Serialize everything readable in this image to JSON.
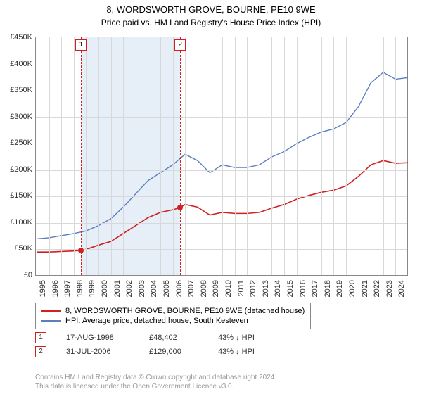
{
  "title_line1": "8, WORDSWORTH GROVE, BOURNE, PE10 9WE",
  "title_line2": "Price paid vs. HM Land Registry's House Price Index (HPI)",
  "chart": {
    "type": "line",
    "background_color": "#ffffff",
    "grid_color": "#d8d8d8",
    "border_color": "#888888",
    "ylim": [
      0,
      450000
    ],
    "ytick_step": 50000,
    "yticks": [
      "£0",
      "£50K",
      "£100K",
      "£150K",
      "£200K",
      "£250K",
      "£300K",
      "£350K",
      "£400K",
      "£450K"
    ],
    "xlim": [
      1995,
      2025
    ],
    "xticks": [
      1995,
      1996,
      1997,
      1998,
      1999,
      2000,
      2001,
      2002,
      2003,
      2004,
      2005,
      2006,
      2007,
      2008,
      2009,
      2010,
      2011,
      2012,
      2013,
      2014,
      2015,
      2016,
      2017,
      2018,
      2019,
      2020,
      2021,
      2022,
      2023,
      2024
    ],
    "shaded_band": {
      "xstart": 1998.6,
      "xend": 2006.6,
      "color": "#e6eef7"
    },
    "event_lines": [
      {
        "x": 1998.6,
        "label": "1",
        "box_color": "#d02020"
      },
      {
        "x": 2006.6,
        "label": "2",
        "box_color": "#d02020"
      }
    ],
    "series": [
      {
        "name": "price_paid",
        "label": "8, WORDSWORTH GROVE, BOURNE, PE10 9WE (detached house)",
        "color": "#d02020",
        "line_width": 1.6,
        "data": [
          [
            1995,
            45000
          ],
          [
            1996,
            45000
          ],
          [
            1997,
            46000
          ],
          [
            1998,
            47000
          ],
          [
            1998.6,
            48402
          ],
          [
            1999,
            50000
          ],
          [
            2000,
            58000
          ],
          [
            2001,
            65000
          ],
          [
            2002,
            80000
          ],
          [
            2003,
            95000
          ],
          [
            2004,
            110000
          ],
          [
            2005,
            120000
          ],
          [
            2006,
            125000
          ],
          [
            2006.6,
            129000
          ],
          [
            2007,
            135000
          ],
          [
            2008,
            130000
          ],
          [
            2009,
            115000
          ],
          [
            2010,
            120000
          ],
          [
            2011,
            118000
          ],
          [
            2012,
            118000
          ],
          [
            2013,
            120000
          ],
          [
            2014,
            128000
          ],
          [
            2015,
            135000
          ],
          [
            2016,
            145000
          ],
          [
            2017,
            152000
          ],
          [
            2018,
            158000
          ],
          [
            2019,
            162000
          ],
          [
            2020,
            170000
          ],
          [
            2021,
            188000
          ],
          [
            2022,
            210000
          ],
          [
            2023,
            218000
          ],
          [
            2024,
            213000
          ],
          [
            2025,
            214000
          ]
        ],
        "markers": [
          {
            "x": 1998.6,
            "y": 48402,
            "color": "#d02020"
          },
          {
            "x": 2006.6,
            "y": 129000,
            "color": "#d02020"
          }
        ]
      },
      {
        "name": "hpi",
        "label": "HPI: Average price, detached house, South Kesteven",
        "color": "#5b7ebf",
        "line_width": 1.4,
        "data": [
          [
            1995,
            70000
          ],
          [
            1996,
            72000
          ],
          [
            1997,
            76000
          ],
          [
            1998,
            80000
          ],
          [
            1999,
            85000
          ],
          [
            2000,
            95000
          ],
          [
            2001,
            108000
          ],
          [
            2002,
            130000
          ],
          [
            2003,
            155000
          ],
          [
            2004,
            180000
          ],
          [
            2005,
            195000
          ],
          [
            2006,
            210000
          ],
          [
            2007,
            230000
          ],
          [
            2008,
            218000
          ],
          [
            2009,
            195000
          ],
          [
            2010,
            210000
          ],
          [
            2011,
            205000
          ],
          [
            2012,
            205000
          ],
          [
            2013,
            210000
          ],
          [
            2014,
            225000
          ],
          [
            2015,
            235000
          ],
          [
            2016,
            250000
          ],
          [
            2017,
            262000
          ],
          [
            2018,
            272000
          ],
          [
            2019,
            278000
          ],
          [
            2020,
            290000
          ],
          [
            2021,
            320000
          ],
          [
            2022,
            365000
          ],
          [
            2023,
            385000
          ],
          [
            2024,
            372000
          ],
          [
            2025,
            375000
          ]
        ]
      }
    ]
  },
  "legend": {
    "series1": "8, WORDSWORTH GROVE, BOURNE, PE10 9WE (detached house)",
    "series2": "HPI: Average price, detached house, South Kesteven"
  },
  "events": [
    {
      "num": "1",
      "date": "17-AUG-1998",
      "price": "£48,402",
      "pct": "43%",
      "arrow": "↓",
      "vs": "HPI"
    },
    {
      "num": "2",
      "date": "31-JUL-2006",
      "price": "£129,000",
      "pct": "43%",
      "arrow": "↓",
      "vs": "HPI"
    }
  ],
  "footer_line1": "Contains HM Land Registry data © Crown copyright and database right 2024.",
  "footer_line2": "This data is licensed under the Open Government Licence v3.0."
}
